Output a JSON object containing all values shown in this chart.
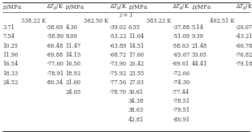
{
  "header_cols": [
    "p/MPa",
    "ΔTg/K",
    "p/MPa",
    "ΔTg/K",
    "p/MPa",
    "ΔTg/K",
    "p/MPa",
    "ΔTg/K"
  ],
  "z_label": "z = 1",
  "temp_headers": [
    "338.22 K",
    "362.50 K",
    "383.22 K",
    "402.51 K"
  ],
  "col1_p": [
    3.71,
    7.54,
    10.25,
    11.96,
    16.54,
    18.33,
    24.52
  ],
  "col1_dt": [
    -38.69,
    -58.8,
    -66.48,
    -69.88,
    -77.6,
    -78.91,
    -80.34
  ],
  "col2_p": [
    4.3,
    8.09,
    11.47,
    14.15,
    16.5,
    18.92,
    21.6,
    24.65
  ],
  "col2_dt": [
    -39.02,
    -53.22,
    -63.89,
    -68.72,
    -73.9,
    -75.92,
    -77.56,
    -78.7
  ],
  "col3_p": [
    6.55,
    11.04,
    14.51,
    17.66,
    20.42,
    23.55,
    27.03,
    30.61,
    34.38,
    38.63,
    42.81
  ],
  "col3_dt": [
    -37.88,
    -51.09,
    -58.63,
    -65.67,
    -69.61,
    -72.66,
    -74.3,
    -77.44,
    -78.51,
    -79.51,
    -80.91
  ],
  "col4_p": [
    5.14,
    9.39,
    21.48,
    33.05,
    44.41
  ],
  "col4_dt": [
    -20.07,
    -43.21,
    -66.78,
    -76.82,
    -79.18
  ],
  "bg_color": "#ffffff",
  "text_color": "#333333",
  "fontsize": 4.8,
  "header_fontsize": 4.9
}
